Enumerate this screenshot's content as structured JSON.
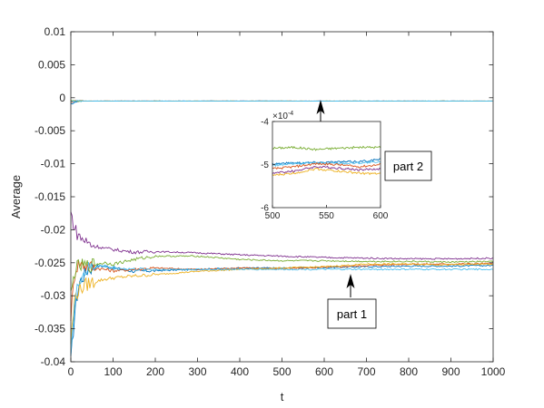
{
  "chart_data": {
    "type": "line",
    "xlabel": "t",
    "ylabel": "Average",
    "xlim": [
      0,
      1000
    ],
    "ylim": [
      -0.04,
      0.01
    ],
    "xticks": [
      0,
      100,
      200,
      300,
      400,
      500,
      600,
      700,
      800,
      900,
      1000
    ],
    "yticks": [
      -0.04,
      -0.035,
      -0.03,
      -0.025,
      -0.02,
      -0.015,
      -0.01,
      -0.005,
      0,
      0.005,
      0.01
    ],
    "xtick_labels": [
      "0",
      "100",
      "200",
      "300",
      "400",
      "500",
      "600",
      "700",
      "800",
      "900",
      "1000"
    ],
    "ytick_labels": [
      "-0.04",
      "-0.035",
      "-0.03",
      "-0.025",
      "-0.02",
      "-0.015",
      "-0.01",
      "-0.005",
      "0",
      "0.005",
      "0.01"
    ],
    "grid": false,
    "series": [
      {
        "color": "#0072BD",
        "x": [
          0,
          10,
          20,
          40,
          60,
          80,
          100,
          150,
          200,
          300,
          400,
          500,
          600,
          700,
          800,
          900,
          1000
        ],
        "part1": [
          -0.04,
          -0.032,
          -0.028,
          -0.026,
          -0.0255,
          -0.0255,
          -0.0258,
          -0.0263,
          -0.0262,
          -0.026,
          -0.0258,
          -0.0258,
          -0.0257,
          -0.0256,
          -0.0255,
          -0.0255,
          -0.0254
        ],
        "part2": [
          -0.001,
          -0.0006,
          -0.0005,
          -0.0005,
          -0.0005,
          -0.0005,
          -0.0005,
          -0.0005,
          -0.0005,
          -0.0005,
          -0.0005,
          -0.0005,
          -0.0005,
          -0.0005,
          -0.0005,
          -0.0005,
          -0.0005
        ]
      },
      {
        "color": "#D95319",
        "x": [
          0,
          10,
          20,
          40,
          60,
          80,
          100,
          150,
          200,
          300,
          400,
          500,
          600,
          700,
          800,
          900,
          1000
        ],
        "part1": [
          -0.033,
          -0.026,
          -0.025,
          -0.0255,
          -0.0258,
          -0.026,
          -0.0262,
          -0.026,
          -0.0258,
          -0.026,
          -0.0258,
          -0.0259,
          -0.0257,
          -0.0254,
          -0.0252,
          -0.0252,
          -0.0251
        ],
        "part2": [
          -0.0008,
          -0.0005,
          -0.0005,
          -0.0005,
          -0.0005,
          -0.0005,
          -0.0005,
          -0.0005,
          -0.0005,
          -0.0005,
          -0.0005,
          -0.0005,
          -0.0005,
          -0.0005,
          -0.0005,
          -0.0005,
          -0.0005
        ]
      },
      {
        "color": "#EDB120",
        "x": [
          0,
          10,
          20,
          40,
          60,
          80,
          100,
          150,
          200,
          300,
          400,
          500,
          600,
          700,
          800,
          900,
          1000
        ],
        "part1": [
          -0.037,
          -0.03,
          -0.029,
          -0.0282,
          -0.0278,
          -0.0275,
          -0.0273,
          -0.027,
          -0.0268,
          -0.0263,
          -0.026,
          -0.0258,
          -0.0256,
          -0.0252,
          -0.0252,
          -0.0253,
          -0.0252
        ],
        "part2": [
          -0.0006,
          -0.0005,
          -0.0005,
          -0.0005,
          -0.0005,
          -0.0005,
          -0.0005,
          -0.0005,
          -0.0005,
          -0.0005,
          -0.0005,
          -0.0005,
          -0.0005,
          -0.0005,
          -0.0005,
          -0.0005,
          -0.0005
        ]
      },
      {
        "color": "#7E2F8E",
        "x": [
          0,
          10,
          20,
          40,
          60,
          80,
          100,
          150,
          200,
          300,
          400,
          500,
          600,
          700,
          800,
          900,
          1000
        ],
        "part1": [
          -0.0175,
          -0.02,
          -0.021,
          -0.022,
          -0.0225,
          -0.0228,
          -0.023,
          -0.0234,
          -0.0233,
          -0.0235,
          -0.0238,
          -0.024,
          -0.0242,
          -0.0243,
          -0.0244,
          -0.0244,
          -0.0243
        ],
        "part2": [
          -0.0005,
          -0.0005,
          -0.0005,
          -0.0005,
          -0.0005,
          -0.0005,
          -0.0005,
          -0.0005,
          -0.0005,
          -0.0005,
          -0.0005,
          -0.0005,
          -0.0005,
          -0.0005,
          -0.0005,
          -0.0005,
          -0.0005
        ]
      },
      {
        "color": "#77AC30",
        "x": [
          0,
          10,
          20,
          40,
          60,
          80,
          100,
          150,
          200,
          300,
          400,
          500,
          600,
          700,
          800,
          900,
          1000
        ],
        "part1": [
          -0.03,
          -0.026,
          -0.0255,
          -0.0255,
          -0.0252,
          -0.025,
          -0.0252,
          -0.0245,
          -0.024,
          -0.024,
          -0.0245,
          -0.0247,
          -0.0247,
          -0.0248,
          -0.0248,
          -0.0249,
          -0.0248
        ],
        "part2": [
          -0.0005,
          -0.0005,
          -0.0005,
          -0.0005,
          -0.0005,
          -0.0005,
          -0.0005,
          -0.0005,
          -0.0005,
          -0.0005,
          -0.0005,
          -0.0005,
          -0.0005,
          -0.0005,
          -0.0005,
          -0.0005,
          -0.0005
        ]
      },
      {
        "color": "#4DBEEE",
        "x": [
          0,
          10,
          20,
          40,
          60,
          80,
          100,
          150,
          200,
          300,
          400,
          500,
          600,
          700,
          800,
          900,
          1000
        ],
        "part1": [
          -0.038,
          -0.031,
          -0.0275,
          -0.026,
          -0.0255,
          -0.0255,
          -0.0258,
          -0.026,
          -0.026,
          -0.026,
          -0.026,
          -0.026,
          -0.026,
          -0.026,
          -0.026,
          -0.026,
          -0.026
        ],
        "part2": [
          -0.0005,
          -0.0005,
          -0.0005,
          -0.0005,
          -0.0005,
          -0.0005,
          -0.0005,
          -0.0005,
          -0.0005,
          -0.0005,
          -0.0005,
          -0.0005,
          -0.0005,
          -0.0005,
          -0.0005,
          -0.0005,
          -0.0005
        ]
      }
    ],
    "inset": {
      "xlim": [
        500,
        600
      ],
      "ylim": [
        -6,
        -4
      ],
      "scale_label": "×10",
      "scale_exponent": "-4",
      "xtick_labels": [
        "500",
        "550",
        "600"
      ],
      "ytick_labels": [
        "-4",
        "-5",
        "-6"
      ],
      "xticks": [
        500,
        550,
        600
      ],
      "yticks": [
        -4,
        -5,
        -6
      ],
      "series": [
        {
          "color": "#77AC30",
          "x": [
            500,
            520,
            540,
            560,
            580,
            600
          ],
          "values": [
            -4.62,
            -4.6,
            -4.65,
            -4.62,
            -4.6,
            -4.6
          ]
        },
        {
          "color": "#0072BD",
          "x": [
            500,
            520,
            540,
            560,
            580,
            600
          ],
          "values": [
            -4.98,
            -4.96,
            -4.95,
            -4.94,
            -4.93,
            -4.88
          ]
        },
        {
          "color": "#4DBEEE",
          "x": [
            500,
            520,
            540,
            560,
            580,
            600
          ],
          "values": [
            -5.02,
            -4.98,
            -4.96,
            -4.97,
            -4.96,
            -4.95
          ]
        },
        {
          "color": "#D95319",
          "x": [
            500,
            520,
            540,
            560,
            580,
            600
          ],
          "values": [
            -5.1,
            -5.05,
            -4.98,
            -5.0,
            -5.05,
            -5.0
          ]
        },
        {
          "color": "#7E2F8E",
          "x": [
            500,
            520,
            540,
            560,
            580,
            600
          ],
          "values": [
            -5.2,
            -5.15,
            -5.05,
            -5.08,
            -5.12,
            -5.1
          ]
        },
        {
          "color": "#EDB120",
          "x": [
            500,
            520,
            540,
            560,
            580,
            600
          ],
          "values": [
            -5.25,
            -5.2,
            -5.1,
            -5.15,
            -5.2,
            -5.22
          ]
        }
      ]
    },
    "annotations": [
      {
        "text": "part 2"
      },
      {
        "text": "part 1"
      }
    ]
  }
}
